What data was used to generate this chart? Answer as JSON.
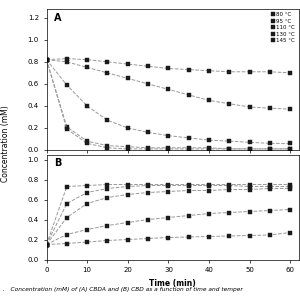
{
  "title_A": "A",
  "title_B": "B",
  "xlabel": "Time (min)",
  "ylabel": "Concentration (mM)",
  "legend_labels": [
    "80 °C",
    "95 °C",
    "110 °C",
    "130 °C",
    "145 °C"
  ],
  "time_points": [
    0,
    5,
    10,
    15,
    20,
    25,
    30,
    35,
    40,
    45,
    50,
    55,
    60
  ],
  "panel_A": {
    "80C": [
      0.82,
      0.83,
      0.82,
      0.8,
      0.78,
      0.76,
      0.74,
      0.73,
      0.72,
      0.71,
      0.71,
      0.71,
      0.7
    ],
    "95C": [
      0.82,
      0.8,
      0.75,
      0.7,
      0.65,
      0.6,
      0.55,
      0.5,
      0.45,
      0.42,
      0.39,
      0.38,
      0.37
    ],
    "110C": [
      0.82,
      0.59,
      0.4,
      0.27,
      0.2,
      0.16,
      0.13,
      0.11,
      0.09,
      0.08,
      0.07,
      0.06,
      0.06
    ],
    "130C": [
      0.82,
      0.21,
      0.08,
      0.04,
      0.03,
      0.02,
      0.02,
      0.02,
      0.02,
      0.01,
      0.01,
      0.01,
      0.01
    ],
    "145C": [
      0.82,
      0.19,
      0.06,
      0.02,
      0.01,
      0.01,
      0.01,
      0.01,
      0.01,
      0.01,
      0.01,
      0.01,
      0.01
    ]
  },
  "panel_B": {
    "80C": [
      0.15,
      0.16,
      0.175,
      0.19,
      0.2,
      0.21,
      0.22,
      0.225,
      0.23,
      0.235,
      0.24,
      0.245,
      0.27
    ],
    "95C": [
      0.15,
      0.25,
      0.3,
      0.34,
      0.37,
      0.4,
      0.42,
      0.44,
      0.46,
      0.47,
      0.48,
      0.49,
      0.5
    ],
    "110C": [
      0.15,
      0.42,
      0.56,
      0.62,
      0.65,
      0.67,
      0.68,
      0.69,
      0.69,
      0.7,
      0.7,
      0.71,
      0.71
    ],
    "130C": [
      0.15,
      0.56,
      0.67,
      0.71,
      0.73,
      0.74,
      0.74,
      0.74,
      0.74,
      0.74,
      0.73,
      0.73,
      0.73
    ],
    "145C": [
      0.15,
      0.73,
      0.74,
      0.75,
      0.75,
      0.75,
      0.75,
      0.75,
      0.75,
      0.75,
      0.75,
      0.75,
      0.75
    ]
  },
  "markers": [
    "s",
    "s",
    "^",
    "s",
    "s"
  ],
  "line_color": "#999999",
  "marker_color": "#1a1a1a",
  "background_color": "#ffffff",
  "caption": ".   Concentration (mM) of (A) CBDA and (B) CBD as a function of time and temper"
}
